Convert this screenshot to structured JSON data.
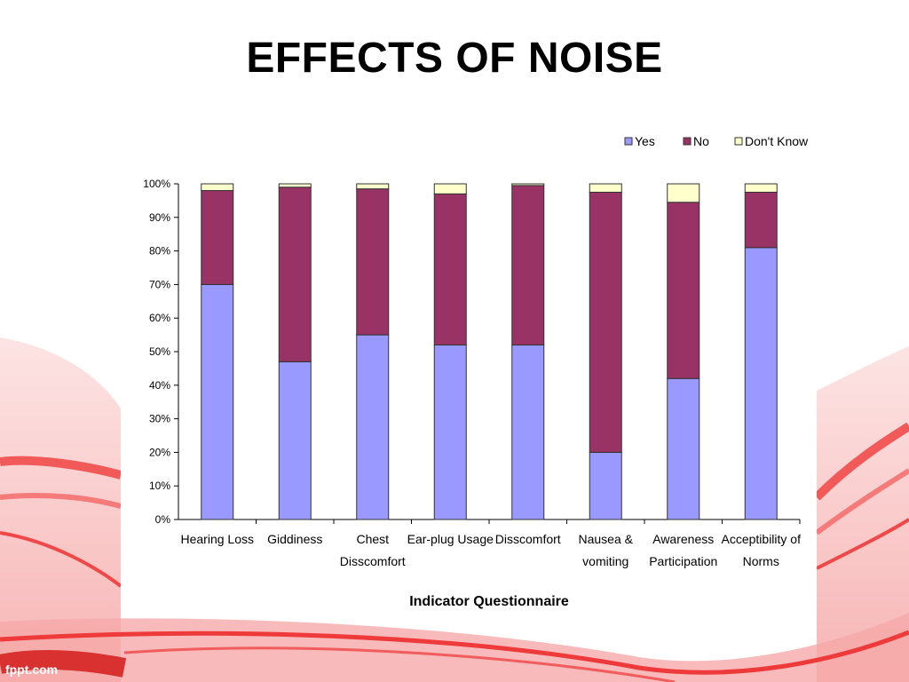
{
  "slide": {
    "title": "EFFECTS OF NOISE",
    "footer": "fppt.com"
  },
  "colors": {
    "yes": "#9999ff",
    "no": "#993366",
    "dont_know": "#ffffcc",
    "accent": "#f04848"
  },
  "chart_data": {
    "type": "bar",
    "stacked": true,
    "categories": [
      [
        "Hearing Loss"
      ],
      [
        "Giddiness"
      ],
      [
        "Chest",
        "Disscomfort"
      ],
      [
        "Ear-plug Usage"
      ],
      [
        "Disscomfort"
      ],
      [
        "Nausea &",
        "vomiting"
      ],
      [
        "Awareness",
        "Participation"
      ],
      [
        "Acceptibility of",
        "Norms"
      ]
    ],
    "series": [
      {
        "name": "Yes",
        "color": "#9999ff",
        "values": [
          70,
          47,
          55,
          52,
          52,
          20,
          42,
          81
        ]
      },
      {
        "name": "No",
        "color": "#993366",
        "values": [
          28,
          52,
          43.5,
          45,
          47.5,
          77.5,
          52.5,
          16.5
        ]
      },
      {
        "name": "Don't Know",
        "color": "#ffffcc",
        "values": [
          2,
          1,
          1.5,
          3,
          0.5,
          2.5,
          5.5,
          2.5
        ]
      }
    ],
    "xlabel": "Indicator Questionnaire",
    "ylabel": "",
    "ylim": [
      0,
      100
    ],
    "yticks": [
      "0%",
      "10%",
      "20%",
      "30%",
      "40%",
      "50%",
      "60%",
      "70%",
      "80%",
      "90%",
      "100%"
    ],
    "grid": false,
    "legend_position": "top-right"
  }
}
